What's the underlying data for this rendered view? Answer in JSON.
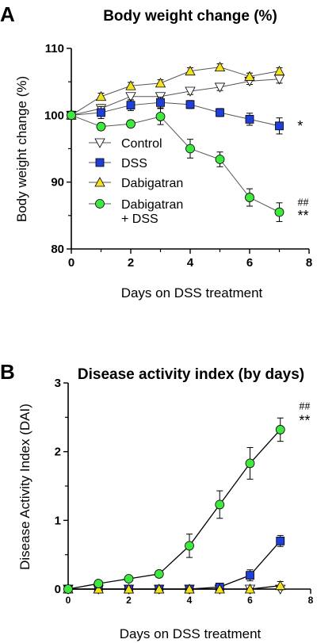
{
  "chart_data": [
    {
      "panel": "A",
      "type": "line",
      "title": "Body weight change (%)",
      "xlabel": "Days on DSS treatment",
      "ylabel": "Body weight change (%)",
      "xlim": [
        0,
        8
      ],
      "ylim": [
        80,
        110
      ],
      "xticks": [
        "0",
        "2",
        "4",
        "6",
        "8"
      ],
      "yticks": [
        "80",
        "90",
        "100",
        "110"
      ],
      "legend_position": "lower-left",
      "series": [
        {
          "name": "Control",
          "marker": "triangle-down",
          "color": "#ffffff",
          "x": [
            0,
            1,
            2,
            3,
            4,
            5,
            6,
            7
          ],
          "y": [
            100,
            101.0,
            102.8,
            102.8,
            103.6,
            104.2,
            105.1,
            105.4
          ],
          "err": [
            0.3,
            0.6,
            0.5,
            0.5,
            0.5,
            0.5,
            0.5,
            0.6
          ]
        },
        {
          "name": "DSS",
          "marker": "square",
          "color": "#1f3fd8",
          "x": [
            0,
            1,
            2,
            3,
            4,
            5,
            6,
            7
          ],
          "y": [
            100,
            100.4,
            101.5,
            101.9,
            101.6,
            100.4,
            99.4,
            98.4
          ],
          "err": [
            0.3,
            0.9,
            0.8,
            0.8,
            0.6,
            0.6,
            0.9,
            1.2
          ]
        },
        {
          "name": "Dabigatran",
          "marker": "triangle-up",
          "color": "#f4e21c",
          "x": [
            0,
            1,
            2,
            3,
            4,
            5,
            6,
            7
          ],
          "y": [
            100,
            102.8,
            104.4,
            104.8,
            106.6,
            107.2,
            105.8,
            106.6
          ],
          "err": [
            0.3,
            0.5,
            0.5,
            0.5,
            0.5,
            0.5,
            0.5,
            0.5
          ]
        },
        {
          "name": "Dabigatran\n+ DSS",
          "marker": "circle",
          "color": "#3ee83e",
          "x": [
            0,
            1,
            2,
            3,
            4,
            5,
            6,
            7
          ],
          "y": [
            100,
            98.3,
            98.7,
            99.8,
            95.0,
            93.4,
            87.7,
            85.5
          ],
          "err": [
            0.3,
            0.5,
            0.5,
            1.2,
            1.4,
            1.1,
            1.3,
            1.4
          ]
        }
      ],
      "annotations": [
        {
          "text": "*",
          "x": 7.7,
          "y": 98.4
        },
        {
          "text": "##",
          "x": 7.8,
          "y": 87.2
        },
        {
          "text": "**",
          "x": 7.8,
          "y": 85.0
        }
      ]
    },
    {
      "panel": "B",
      "type": "line",
      "title": "Disease activity index (by days)",
      "xlabel": "Days on DSS treatment",
      "ylabel": "Disease Activity Index (DAI)",
      "xlim": [
        0,
        8
      ],
      "ylim": [
        0,
        3
      ],
      "xticks": [
        "0",
        "2",
        "4",
        "6",
        "8"
      ],
      "yticks": [
        "0",
        "1",
        "2",
        "3"
      ],
      "series": [
        {
          "name": "Control",
          "marker": "triangle-down",
          "color": "#ffffff",
          "x": [
            0,
            1,
            2,
            3,
            4,
            5,
            6,
            7
          ],
          "y": [
            0,
            0,
            0,
            0,
            0,
            0,
            0,
            0
          ],
          "err": [
            0,
            0,
            0,
            0,
            0,
            0,
            0,
            0
          ]
        },
        {
          "name": "DSS",
          "marker": "square",
          "color": "#1f3fd8",
          "x": [
            0,
            1,
            2,
            3,
            4,
            5,
            6,
            7
          ],
          "y": [
            0,
            0,
            0,
            0,
            0,
            0.03,
            0.2,
            0.7
          ],
          "err": [
            0,
            0,
            0,
            0,
            0,
            0,
            0.08,
            0.08
          ]
        },
        {
          "name": "Dabigatran",
          "marker": "triangle-up",
          "color": "#f4e21c",
          "x": [
            0,
            1,
            2,
            3,
            4,
            5,
            6,
            7
          ],
          "y": [
            0,
            0,
            0,
            0,
            0,
            0,
            0,
            0.05
          ],
          "err": [
            0,
            0,
            0,
            0,
            0,
            0,
            0,
            0.06
          ]
        },
        {
          "name": "Dabigatran + DSS",
          "marker": "circle",
          "color": "#3ee83e",
          "x": [
            0,
            1,
            2,
            3,
            4,
            5,
            6,
            7
          ],
          "y": [
            0,
            0.08,
            0.15,
            0.22,
            0.63,
            1.23,
            1.83,
            2.32
          ],
          "err": [
            0,
            0,
            0,
            0.04,
            0.17,
            0.2,
            0.23,
            0.17
          ]
        }
      ],
      "annotations": [
        {
          "text": "##",
          "x": 7.8,
          "y": 2.68
        },
        {
          "text": "**",
          "x": 7.8,
          "y": 2.45
        }
      ]
    }
  ]
}
